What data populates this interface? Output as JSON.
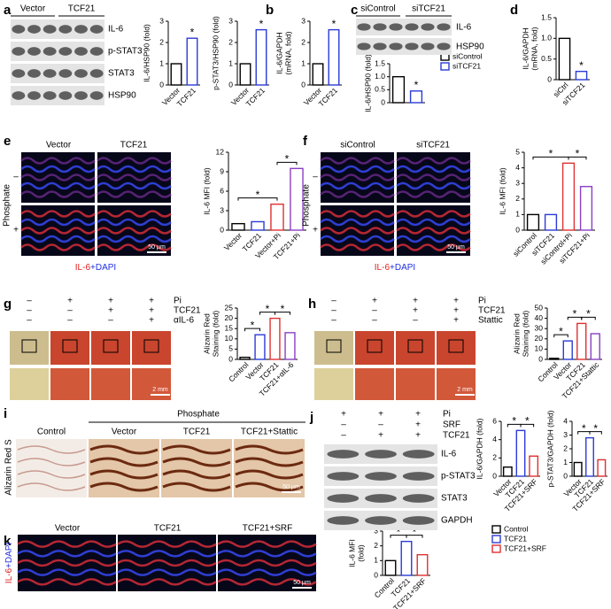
{
  "chart_data": [
    {
      "type": "bar",
      "ylabel": "IL-6/HSP90 (fold)",
      "categories": [
        "Vector",
        "TCF21"
      ],
      "values": [
        1.0,
        2.2
      ],
      "colors": [
        "#000000",
        "#2b3bd6"
      ],
      "ylim": [
        0,
        3
      ],
      "yticks": [
        0,
        1,
        2,
        3
      ],
      "annotations": [
        "*"
      ]
    },
    {
      "type": "bar",
      "ylabel": "p-STAT3/HSP90 (fold)",
      "categories": [
        "Vector",
        "TCF21"
      ],
      "values": [
        1.0,
        2.6
      ],
      "colors": [
        "#000000",
        "#2b3bd6"
      ],
      "ylim": [
        0,
        3
      ],
      "yticks": [
        0,
        1,
        2,
        3
      ],
      "annotations": [
        "*"
      ]
    },
    {
      "type": "bar",
      "ylabel": [
        "IL-6/GAPDH",
        "(mRNA, fold)"
      ],
      "categories": [
        "Vector",
        "TCF21"
      ],
      "values": [
        1.0,
        2.6
      ],
      "colors": [
        "#000000",
        "#2b3bd6"
      ],
      "ylim": [
        0,
        3
      ],
      "yticks": [
        0,
        1,
        2,
        3
      ],
      "annotations": [
        "*"
      ]
    },
    {
      "type": "bar",
      "ylabel": "IL-6/HSP90 (fold)",
      "categories": [
        "siControl",
        "siTCF21"
      ],
      "values": [
        1.0,
        0.45
      ],
      "colors": [
        "#000000",
        "#2b3bd6"
      ],
      "ylim": [
        0,
        1.5
      ],
      "yticks": [
        0,
        {
          "value": 0.5,
          "label": "0.5"
        },
        {
          "value": 1,
          "label": "1.0"
        },
        {
          "value": 1.5,
          "label": "1.5"
        }
      ],
      "annotations": [
        "*"
      ],
      "legend": [
        "siControl",
        "siTCF21"
      ],
      "show_categories": false
    },
    {
      "type": "bar",
      "ylabel": [
        "IL-6/GAPDH",
        "(mRNA, fold)"
      ],
      "categories": [
        "siCtrl",
        "siTCF21"
      ],
      "values": [
        1.0,
        0.2
      ],
      "colors": [
        "#000000",
        "#2b3bd6"
      ],
      "ylim": [
        0,
        1.5
      ],
      "yticks": [
        0,
        {
          "value": 0.5,
          "label": "0.5"
        },
        {
          "value": 1,
          "label": "1.0"
        },
        {
          "value": 1.5,
          "label": "1.5"
        }
      ],
      "annotations": [
        "*"
      ]
    },
    {
      "type": "bar",
      "ylabel": "IL-6 MFI (fold)",
      "categories": [
        "Vector",
        "TCF21",
        "Vector+Pi",
        "TCF21+Pi"
      ],
      "values": [
        1,
        1.3,
        4,
        9.5
      ],
      "colors": [
        "#000000",
        "#2b3bd6",
        "#e03030",
        "#8b3fc4"
      ],
      "ylim": [
        0,
        12
      ],
      "yticks": [
        0,
        3,
        6,
        9,
        12
      ],
      "annotations": [
        "*",
        "*"
      ]
    },
    {
      "type": "bar",
      "ylabel": "IL-6 MFI (fold)",
      "categories": [
        "siControl",
        "siTCF21",
        "siControl+Pi",
        "siTCF21+Pi"
      ],
      "values": [
        1,
        1,
        4.3,
        2.8
      ],
      "colors": [
        "#000000",
        "#2b3bd6",
        "#e03030",
        "#8b3fc4"
      ],
      "ylim": [
        0,
        5
      ],
      "yticks": [
        0,
        1,
        2,
        3,
        4,
        5
      ],
      "annotations": [
        "*",
        "*"
      ]
    },
    {
      "type": "bar",
      "ylabel": [
        "Alizarin Red",
        "Staining (fold)"
      ],
      "categories": [
        "Control",
        "Vector",
        "TCF21",
        "TCF21+αIL-6"
      ],
      "values": [
        1,
        12,
        20,
        13
      ],
      "colors": [
        "#000000",
        "#2b3bd6",
        "#e03030",
        "#8b3fc4"
      ],
      "ylim": [
        0,
        25
      ],
      "yticks": [
        0,
        5,
        10,
        15,
        20,
        25
      ],
      "annotations": [
        "*",
        "*",
        "*"
      ]
    },
    {
      "type": "bar",
      "ylabel": [
        "Alizarin Red",
        "Staining (fold)"
      ],
      "categories": [
        "Control",
        "Vector",
        "TCF21",
        "TCF21+Stattic"
      ],
      "values": [
        1,
        18,
        35,
        25
      ],
      "colors": [
        "#000000",
        "#2b3bd6",
        "#e03030",
        "#8b3fc4"
      ],
      "ylim": [
        0,
        50
      ],
      "yticks": [
        0,
        10,
        20,
        30,
        40,
        50
      ],
      "annotations": [
        "*",
        "*",
        "*"
      ]
    },
    {
      "type": "bar",
      "ylabel": "IL-6/GAPDH (fold)",
      "categories": [
        "Vector",
        "TCF21",
        "TCF21+SRF"
      ],
      "values": [
        1,
        5,
        2.2
      ],
      "colors": [
        "#000000",
        "#2b3bd6",
        "#e03030"
      ],
      "ylim": [
        0,
        6
      ],
      "yticks": [
        0,
        2,
        4,
        6
      ],
      "annotations": [
        "*",
        "*"
      ]
    },
    {
      "type": "bar",
      "ylabel": "p-STAT3/GAPDH (fold)",
      "categories": [
        "Vector",
        "TCF21",
        "TCF21+SRF"
      ],
      "values": [
        1,
        2.8,
        1.2
      ],
      "colors": [
        "#000000",
        "#2b3bd6",
        "#e03030"
      ],
      "ylim": [
        0,
        4
      ],
      "yticks": [
        0,
        1,
        2,
        3,
        4
      ],
      "annotations": [
        "*",
        "*"
      ]
    },
    {
      "type": "bar",
      "ylabel": [
        "IL-6 MFI",
        "(fold)"
      ],
      "categories": [
        "Control",
        "TCF21",
        "TCF21+SRF"
      ],
      "values": [
        1,
        2.3,
        1.4
      ],
      "colors": [
        "#000000",
        "#2b3bd6",
        "#e03030"
      ],
      "ylim": [
        0,
        3
      ],
      "yticks": [
        0,
        1,
        2,
        3
      ],
      "annotations": [
        "*",
        "*"
      ],
      "legend": [
        "Control",
        "TCF21",
        "TCF21+SRF"
      ]
    }
  ],
  "panels": {
    "a": {
      "letter": "a",
      "groups": [
        "Vector",
        "TCF21"
      ],
      "bands": [
        "IL-6",
        "p-STAT3",
        "STAT3",
        "HSP90"
      ]
    },
    "b": {
      "letter": "b"
    },
    "c": {
      "letter": "c",
      "groups": [
        "siControl",
        "siTCF21"
      ],
      "bands": [
        "IL-6",
        "HSP90"
      ]
    },
    "d": {
      "letter": "d"
    },
    "e": {
      "letter": "e",
      "columns": [
        "Vector",
        "TCF21"
      ],
      "row_title": "Phosphate",
      "rows": [
        "–",
        "+"
      ],
      "stain": [
        "IL-6",
        "+DAPI"
      ],
      "scale": "50 µm"
    },
    "f": {
      "letter": "f",
      "columns": [
        "siControl",
        "siTCF21"
      ],
      "row_title": "Phosphate",
      "rows": [
        "–",
        "+"
      ],
      "stain": [
        "IL-6",
        "+DAPI"
      ],
      "scale": "50 µm"
    },
    "g": {
      "letter": "g",
      "conditions": [
        {
          "label": "Pi",
          "signs": [
            "–",
            "+",
            "+",
            "+"
          ]
        },
        {
          "label": "TCF21",
          "signs": [
            "–",
            "–",
            "+",
            "+"
          ]
        },
        {
          "label": "αIL-6",
          "signs": [
            "–",
            "–",
            "–",
            "+"
          ]
        }
      ],
      "scale": "2 mm"
    },
    "h": {
      "letter": "h",
      "conditions": [
        {
          "label": "Pi",
          "signs": [
            "–",
            "+",
            "+",
            "+"
          ]
        },
        {
          "label": "TCF21",
          "signs": [
            "–",
            "–",
            "+",
            "+"
          ]
        },
        {
          "label": "Stattic",
          "signs": [
            "–",
            "–",
            "–",
            "+"
          ]
        }
      ],
      "scale": "2 mm"
    },
    "i": {
      "letter": "i",
      "row_title": "Alizarin Red S",
      "group": "Phosphate",
      "columns": [
        "Control",
        "Vector",
        "TCF21",
        "TCF21+Stattic"
      ],
      "scale": "50 µm"
    },
    "j": {
      "letter": "j",
      "conditions": [
        {
          "label": "Pi",
          "signs": [
            "+",
            "+",
            "+"
          ]
        },
        {
          "label": "SRF",
          "signs": [
            "–",
            "–",
            "+"
          ]
        },
        {
          "label": "TCF21",
          "signs": [
            "–",
            "+",
            "+"
          ]
        }
      ],
      "bands": [
        "IL-6",
        "p-STAT3",
        "STAT3",
        "GAPDH"
      ]
    },
    "k": {
      "letter": "k",
      "columns": [
        "Vector",
        "TCF21",
        "TCF21+SRF"
      ],
      "stain": [
        "IL-6",
        "+DAPI"
      ],
      "scale": "50 µm"
    }
  }
}
